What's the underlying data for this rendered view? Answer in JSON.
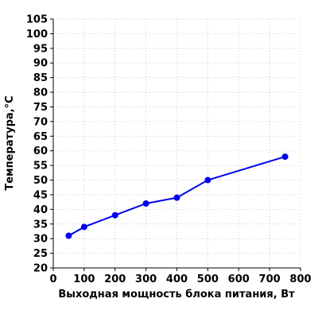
{
  "chart_data": {
    "type": "line",
    "title": "",
    "xlabel": "Выходная мощность блока питания, Вт",
    "ylabel": "Температура,°С",
    "xlim": [
      0,
      800
    ],
    "ylim": [
      20,
      105
    ],
    "x_ticks": [
      0,
      100,
      200,
      300,
      400,
      500,
      600,
      700,
      800
    ],
    "y_ticks": [
      20,
      25,
      30,
      35,
      40,
      45,
      50,
      55,
      60,
      65,
      70,
      75,
      80,
      85,
      90,
      95,
      100,
      105
    ],
    "grid": true,
    "series": [
      {
        "color": "#0000ee",
        "x": [
          50,
          100,
          200,
          300,
          400,
          500,
          750
        ],
        "y": [
          31,
          34,
          38,
          42,
          44,
          50,
          58
        ]
      }
    ]
  }
}
